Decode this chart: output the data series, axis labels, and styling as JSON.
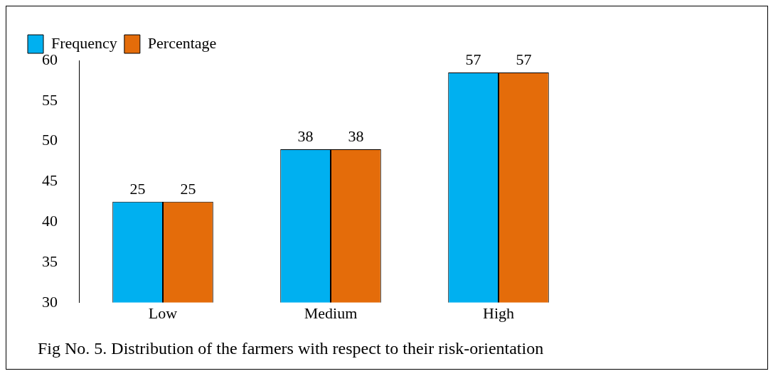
{
  "chart_data": {
    "type": "bar",
    "categories": [
      "Low",
      "Medium",
      "High"
    ],
    "series": [
      {
        "name": "Frequency",
        "color": "#00b0f0",
        "values": [
          25,
          38,
          57
        ]
      },
      {
        "name": "Percentage",
        "color": "#e46c0a",
        "values": [
          25,
          38,
          57
        ]
      }
    ],
    "data_labels": true,
    "ylim": [
      0,
      60
    ],
    "y2lim": [
      30,
      60
    ],
    "y2ticks": [
      30,
      35,
      40,
      45,
      50,
      55,
      60
    ],
    "grid": false,
    "legend": "top left",
    "annotations": [
      "Fig No. 5. Distribution of the farmers with respect to their risk-orientation"
    ]
  }
}
